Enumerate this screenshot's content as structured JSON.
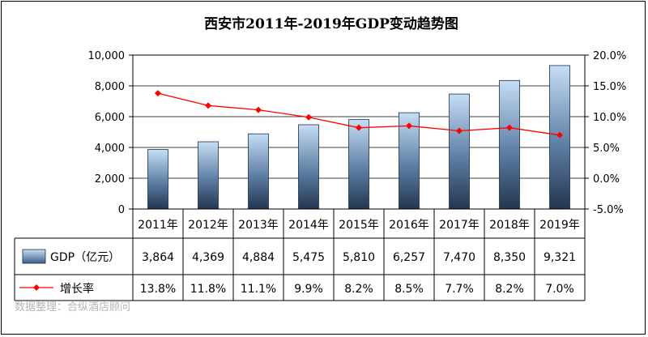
{
  "chart_data": {
    "type": "bar",
    "title": "西安市2011年-2019年GDP变动趋势图",
    "categories": [
      "2011年",
      "2012年",
      "2013年",
      "2014年",
      "2015年",
      "2016年",
      "2017年",
      "2018年",
      "2019年"
    ],
    "series": [
      {
        "name": "GDP（亿元）",
        "kind": "bar",
        "axis": "left",
        "values": [
          3864,
          4369,
          4884,
          5475,
          5810,
          6257,
          7470,
          8350,
          9321
        ],
        "labels": [
          "3,864",
          "4,369",
          "4,884",
          "5,475",
          "5,810",
          "6,257",
          "7,470",
          "8,350",
          "9,321"
        ]
      },
      {
        "name": "增长率",
        "kind": "line",
        "axis": "right",
        "values": [
          13.8,
          11.8,
          11.1,
          9.9,
          8.2,
          8.5,
          7.7,
          8.2,
          7.0
        ],
        "labels": [
          "13.8%",
          "11.8%",
          "11.1%",
          "9.9%",
          "8.2%",
          "8.5%",
          "7.7%",
          "8.2%",
          "7.0%"
        ]
      }
    ],
    "y_left": {
      "ylim": [
        0,
        10000
      ],
      "ticks": [
        "0",
        "2,000",
        "4,000",
        "6,000",
        "8,000",
        "10,000"
      ]
    },
    "y_right": {
      "ylim": [
        -5.0,
        20.0
      ],
      "ticks": [
        "-5.0%",
        "0.0%",
        "5.0%",
        "10.0%",
        "15.0%",
        "20.0%"
      ]
    },
    "grid": true,
    "legend": "data-table",
    "colors": {
      "bar_top": "#c6def5",
      "bar_bottom": "#23364f",
      "line": "#ff0000"
    }
  },
  "source_note": "数据整理：合纵酒店顾问"
}
